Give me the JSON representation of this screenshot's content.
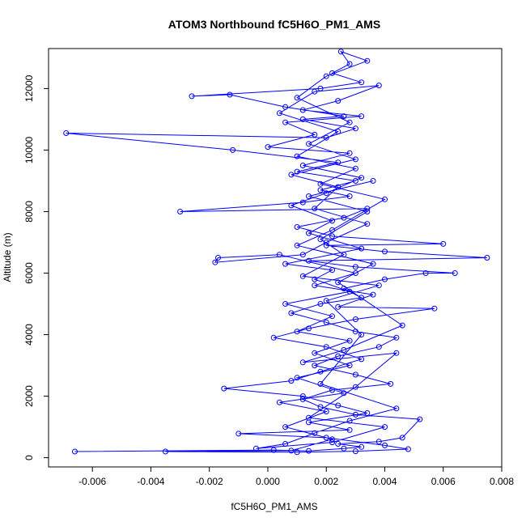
{
  "chart_data": {
    "type": "line",
    "title": "ATOM3 Northbound fC5H6O_PM1_AMS",
    "xlabel": "fC5H6O_PM1_AMS",
    "ylabel": "Altitude (m)",
    "xlim": [
      -0.0075,
      0.008
    ],
    "ylim": [
      -300,
      13300
    ],
    "xticks": [
      -0.006,
      -0.004,
      -0.002,
      0.0,
      0.002,
      0.004,
      0.006,
      0.008
    ],
    "xtick_labels": [
      "-0.006",
      "-0.004",
      "-0.002",
      "0.000",
      "0.002",
      "0.004",
      "0.006",
      "0.008"
    ],
    "yticks": [
      0,
      2000,
      4000,
      6000,
      8000,
      10000,
      12000
    ],
    "ytick_labels": [
      "0",
      "2000",
      "4000",
      "6000",
      "8000",
      "10000",
      "12000"
    ],
    "grid": false,
    "legend": "none",
    "series_color": "#0000ff",
    "marker": "open-circle",
    "series": [
      {
        "points": [
          [
            -0.0066,
            200
          ],
          [
            0.0002,
            250
          ],
          [
            0.0014,
            220
          ],
          [
            0.0026,
            300
          ],
          [
            0.0032,
            350
          ],
          [
            0.0024,
            450
          ],
          [
            0.0038,
            520
          ],
          [
            0.0046,
            650
          ],
          [
            0.0052,
            1250
          ],
          [
            0.003,
            1400
          ],
          [
            0.0018,
            1650
          ],
          [
            0.0012,
            1900
          ],
          [
            0.0022,
            2200
          ],
          [
            0.0042,
            2400
          ],
          [
            0.003,
            2700
          ],
          [
            0.0016,
            3000
          ],
          [
            0.0024,
            3300
          ],
          [
            0.0038,
            3600
          ],
          [
            0.0044,
            3900
          ],
          [
            0.003,
            4100
          ],
          [
            0.002,
            4400
          ],
          [
            0.0008,
            4700
          ],
          [
            0.0018,
            5000
          ],
          [
            0.0032,
            5200
          ],
          [
            0.0026,
            5500
          ],
          [
            0.004,
            5800
          ],
          [
            0.0054,
            6000
          ],
          [
            0.0064,
            6000
          ],
          [
            0.003,
            6200
          ],
          [
            0.0014,
            6400
          ],
          [
            0.0075,
            6500
          ],
          [
            0.004,
            6700
          ],
          [
            0.002,
            6900
          ],
          [
            0.006,
            6950
          ],
          [
            0.0022,
            7200
          ],
          [
            0.001,
            7500
          ],
          [
            0.0026,
            7800
          ],
          [
            0.0034,
            8100
          ],
          [
            -0.003,
            8000
          ],
          [
            0.0012,
            8300
          ],
          [
            0.0028,
            8500
          ],
          [
            0.0018,
            8700
          ],
          [
            0.003,
            9000
          ],
          [
            0.001,
            9300
          ],
          [
            0.0024,
            9600
          ],
          [
            -0.0012,
            10000
          ],
          [
            -0.0069,
            10550
          ],
          [
            0.002,
            10400
          ],
          [
            0.003,
            10700
          ],
          [
            0.0012,
            11000
          ],
          [
            0.0026,
            11100
          ],
          [
            0.0006,
            11400
          ],
          [
            -0.0013,
            11800
          ],
          [
            -0.0026,
            11750
          ],
          [
            0.0018,
            12000
          ],
          [
            0.0032,
            12200
          ],
          [
            0.0022,
            12500
          ],
          [
            0.0028,
            12800
          ],
          [
            0.0025,
            13200
          ],
          [
            0.0034,
            12900
          ],
          [
            0.002,
            12400
          ],
          [
            0.001,
            11700
          ],
          [
            0.0028,
            10900
          ],
          [
            0.0014,
            10200
          ],
          [
            0.003,
            9700
          ],
          [
            0.0008,
            9200
          ],
          [
            0.0024,
            8800
          ],
          [
            0.0016,
            8100
          ],
          [
            0.0034,
            7600
          ],
          [
            0.002,
            7000
          ],
          [
            0.0012,
            6600
          ],
          [
            -0.0018,
            6350
          ],
          [
            -0.0017,
            6500
          ],
          [
            0.0004,
            6600
          ],
          [
            0.003,
            6000
          ],
          [
            0.0016,
            5600
          ],
          [
            0.0036,
            5300
          ],
          [
            0.0024,
            4900
          ],
          [
            0.0057,
            4850
          ],
          [
            0.003,
            4500
          ],
          [
            0.0014,
            4200
          ],
          [
            0.0002,
            3900
          ],
          [
            0.002,
            3600
          ],
          [
            0.0032,
            3200
          ],
          [
            0.0018,
            2800
          ],
          [
            0.0008,
            2500
          ],
          [
            -0.0015,
            2250
          ],
          [
            0.0012,
            2000
          ],
          [
            0.0024,
            1700
          ],
          [
            0.0034,
            1450
          ],
          [
            0.0014,
            1150
          ],
          [
            0.0028,
            900
          ],
          [
            -0.001,
            780
          ],
          [
            0.002,
            650
          ],
          [
            0.004,
            400
          ],
          [
            0.0048,
            280
          ],
          [
            0.003,
            210
          ],
          [
            0.001,
            180
          ],
          [
            -0.0035,
            200
          ],
          [
            0.0008,
            230
          ],
          [
            0.0022,
            600
          ],
          [
            0.0006,
            1000
          ],
          [
            0.002,
            1500
          ],
          [
            0.0004,
            1800
          ],
          [
            0.0026,
            2100
          ],
          [
            0.001,
            2600
          ],
          [
            0.0028,
            3000
          ],
          [
            0.0016,
            3400
          ],
          [
            0.0028,
            3800
          ],
          [
            0.001,
            4100
          ],
          [
            0.0022,
            4600
          ],
          [
            0.0006,
            5000
          ],
          [
            0.0028,
            5400
          ],
          [
            0.0016,
            5800
          ],
          [
            0.0022,
            6100
          ],
          [
            0.0006,
            6300
          ],
          [
            0.0032,
            6800
          ],
          [
            0.0014,
            7300
          ],
          [
            0.0022,
            7700
          ],
          [
            0.0008,
            8200
          ],
          [
            0.002,
            8600
          ],
          [
            0.0032,
            9100
          ],
          [
            0.0012,
            9500
          ],
          [
            0.0028,
            9900
          ],
          [
            0.0,
            10100
          ],
          [
            0.0016,
            10500
          ],
          [
            0.0006,
            10900
          ],
          [
            0.0032,
            11100
          ],
          [
            0.0012,
            11300
          ],
          [
            0.0024,
            11600
          ],
          [
            0.0038,
            12100
          ],
          [
            0.0016,
            11900
          ],
          [
            0.0004,
            11200
          ],
          [
            0.0024,
            10600
          ],
          [
            0.001,
            9800
          ],
          [
            0.003,
            9400
          ],
          [
            0.0018,
            8900
          ],
          [
            0.004,
            8400
          ],
          [
            0.0022,
            7400
          ],
          [
            0.001,
            6900
          ],
          [
            0.0036,
            6300
          ],
          [
            0.0024,
            5700
          ],
          [
            0.0046,
            4300
          ],
          [
            0.0026,
            3500
          ],
          [
            0.0012,
            3100
          ],
          [
            0.0044,
            3400
          ],
          [
            0.003,
            2300
          ],
          [
            0.0014,
            1300
          ],
          [
            0.004,
            1000
          ],
          [
            0.0022,
            500
          ],
          [
            -0.0004,
            300
          ],
          [
            0.0006,
            450
          ],
          [
            0.0016,
            800
          ],
          [
            0.0028,
            1200
          ],
          [
            0.0044,
            1600
          ],
          [
            0.0018,
            2400
          ],
          [
            0.0032,
            4000
          ],
          [
            0.002,
            5100
          ],
          [
            0.0038,
            5600
          ],
          [
            0.0012,
            5900
          ],
          [
            0.0026,
            6600
          ],
          [
            0.0018,
            7100
          ],
          [
            0.0034,
            8000
          ],
          [
            0.0014,
            8500
          ],
          [
            0.0036,
            9000
          ]
        ]
      }
    ]
  }
}
